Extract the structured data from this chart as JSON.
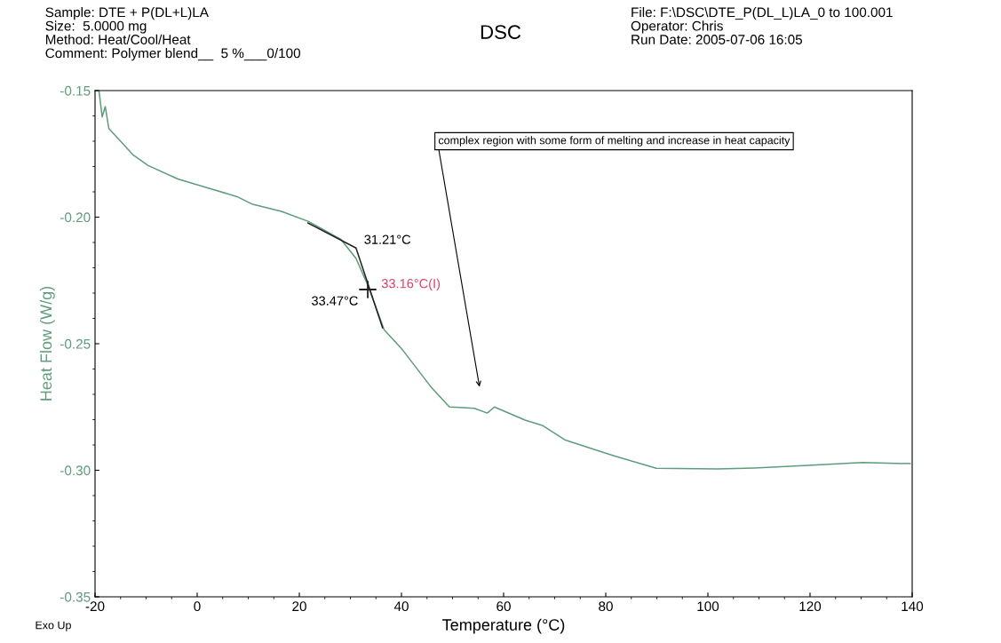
{
  "chart_data": {
    "type": "line",
    "title": "DSC",
    "xlabel": "Temperature (°C)",
    "ylabel": "Heat Flow (W/g)",
    "xlim": [
      -20,
      140
    ],
    "xticks": [
      -20,
      0,
      20,
      40,
      60,
      80,
      100,
      120,
      140
    ],
    "ylim": [
      -0.35,
      -0.15
    ],
    "yticks": [
      -0.35,
      {
        "value": -0.3,
        "label": "-0.30"
      },
      -0.25,
      {
        "value": -0.2,
        "label": "-0.20"
      },
      -0.15
    ],
    "grid": false,
    "legend": false,
    "marker": "none",
    "line_style": "solid",
    "series": [
      {
        "color": "#5e9c7c",
        "x": [
          -19.5,
          -19.2,
          -18.6,
          -18.0,
          -17.3,
          -15.4,
          -12.5,
          -9.6,
          -3.8,
          2.0,
          7.8,
          10.7,
          16.5,
          21.8,
          28.1,
          31.1,
          33.4,
          35.7,
          36.6,
          40.2,
          45.9,
          49.4,
          54.3,
          56.8,
          58.2,
          64.2,
          67.7,
          72.1,
          81.9,
          89.9,
          101.9,
          109.0,
          119.6,
          130.3,
          139.6
        ],
        "values": [
          -0.15,
          -0.1505,
          -0.1604,
          -0.1563,
          -0.165,
          -0.1691,
          -0.1755,
          -0.1796,
          -0.1849,
          -0.1884,
          -0.1919,
          -0.1948,
          -0.1977,
          -0.2017,
          -0.2087,
          -0.2163,
          -0.2268,
          -0.2395,
          -0.2445,
          -0.2524,
          -0.2674,
          -0.275,
          -0.2755,
          -0.2774,
          -0.275,
          -0.2802,
          -0.2824,
          -0.2881,
          -0.2945,
          -0.2992,
          -0.2995,
          -0.2991,
          -0.2981,
          -0.2969,
          -0.2974
        ]
      },
      {
        "color": "#222222",
        "x": [
          21.7,
          31.1,
          36.3
        ],
        "values": [
          -0.2023,
          -0.2122,
          -0.2437
        ]
      },
      {
        "type": "scatter",
        "marker": "cross",
        "color": "#222222",
        "x": [
          33.4
        ],
        "values": [
          -0.2286
        ]
      }
    ],
    "annotations": [
      "Sample: DTE + P(DL+L)LA\nSize:  5.0000 mg\nMethod: Heat/Cool/Heat\nComment: Polymer blend__  5 %___0/100",
      "File: F:\\DSC\\DTE_P(DL_L)LA_0 to 100.001\nOperator: Chris\nRun Date: 2005-07-06 16:05",
      "Exo Up",
      "complex region with some form of melting and increase in heat capacity",
      {
        "text": "31.21°C",
        "x": 31.21,
        "y": -0.2122
      },
      {
        "text": "33.16°C(I)",
        "x": 33.16,
        "y": -0.2286
      },
      {
        "text": "33.47°C",
        "x": 33.47,
        "y": -0.2286
      }
    ]
  }
}
